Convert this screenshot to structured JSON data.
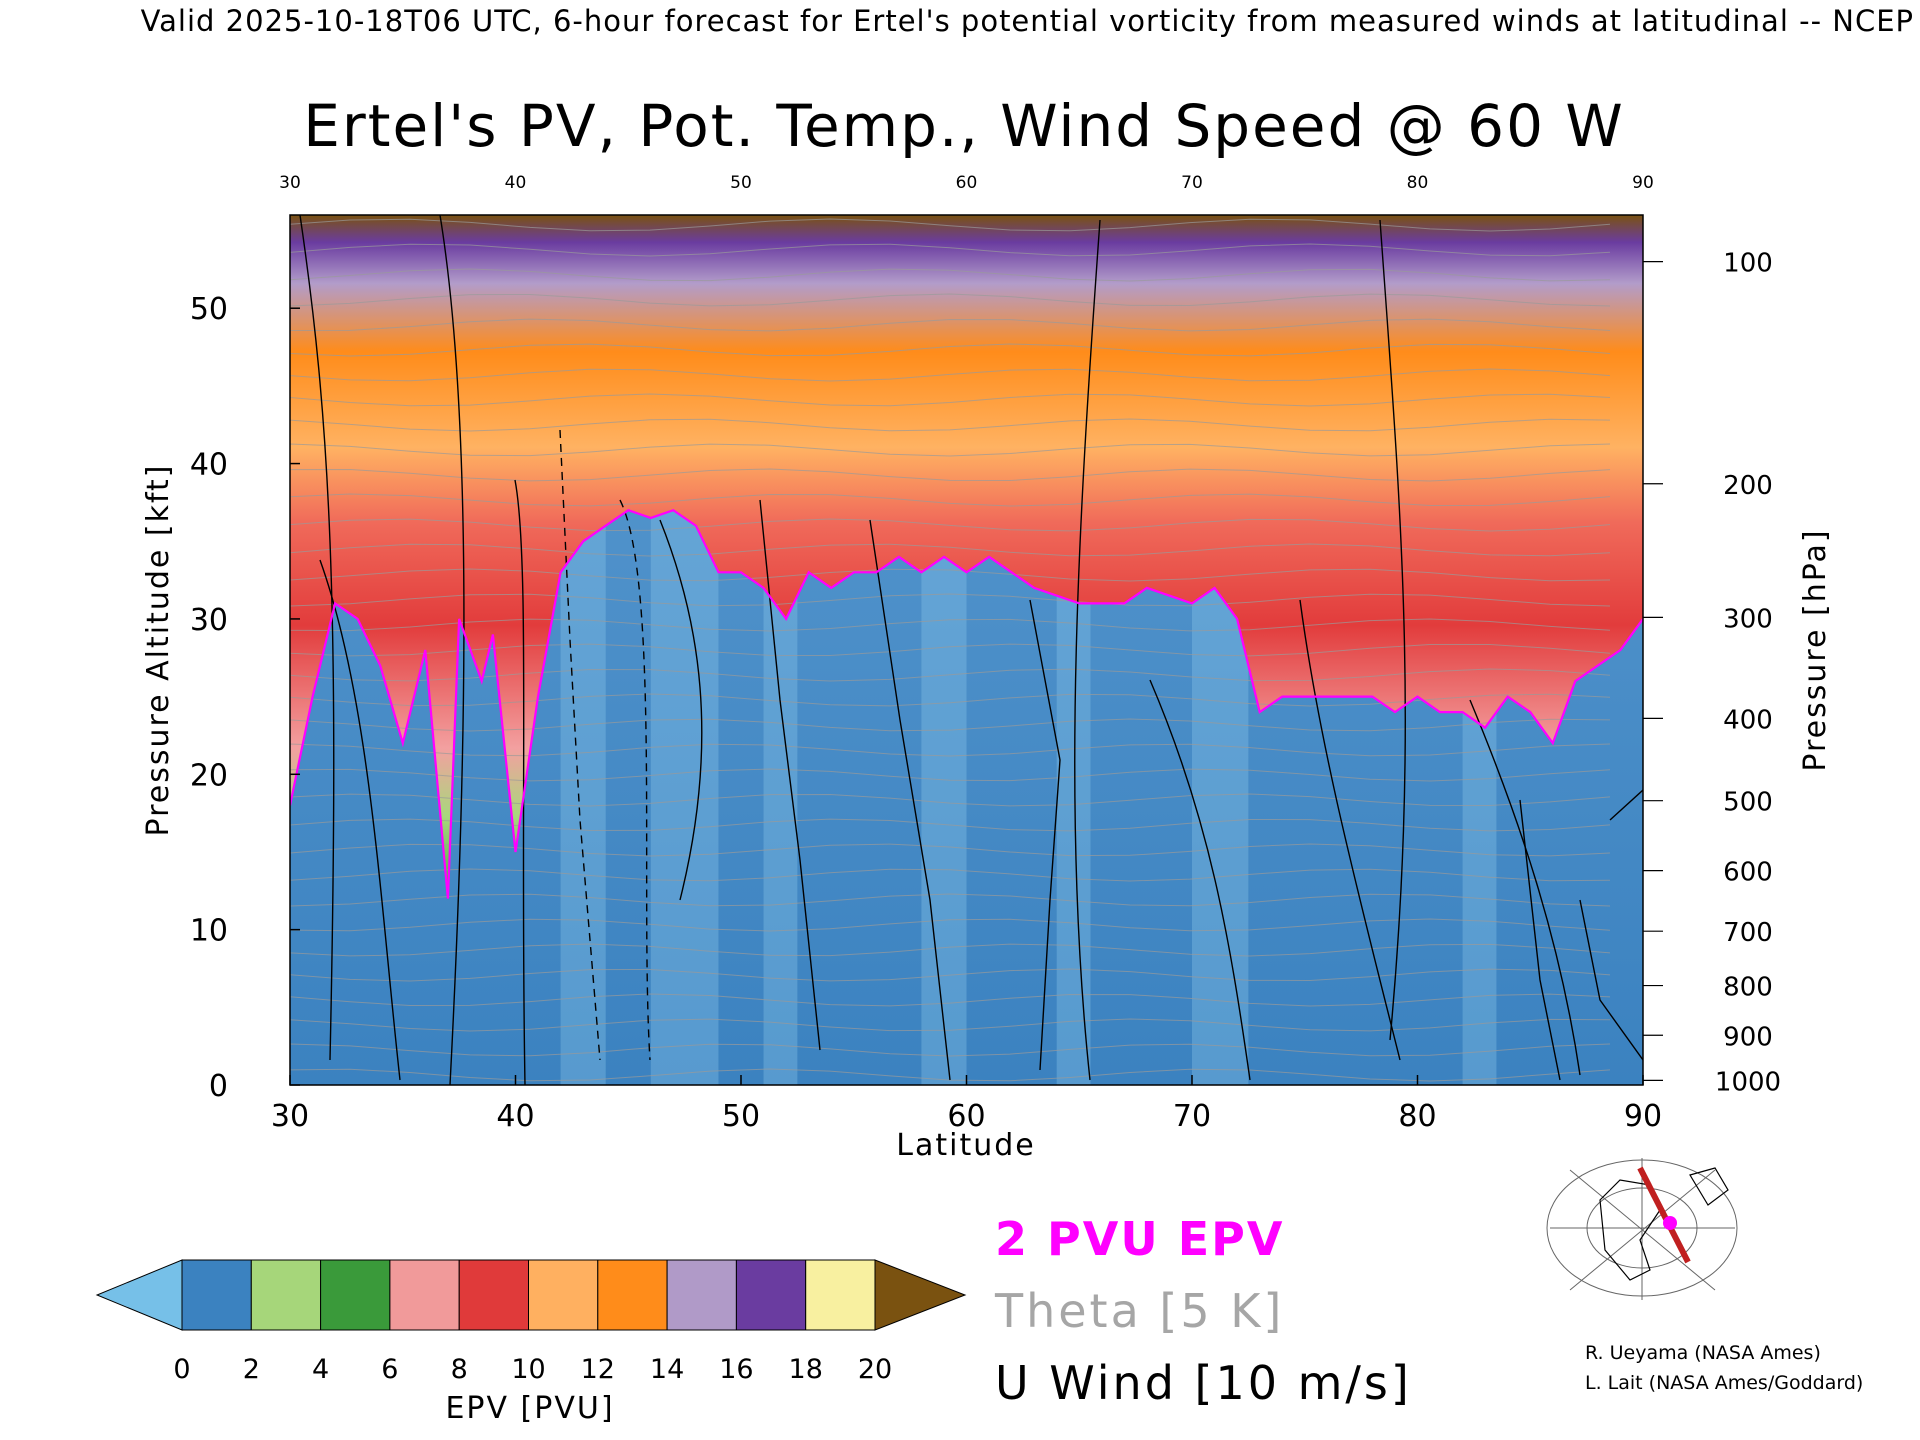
{
  "header": "Valid 2025-10-18T06 UTC, 6-hour forecast for Ertel's potential vorticity from measured winds at latitudinal -- NCEP",
  "title": "Ertel's PV, Pot. Temp., Wind Speed @ 60 W",
  "chart_data": {
    "type": "heatmap",
    "title": "Ertel's PV, Pot. Temp., Wind Speed @ 60 W",
    "xlabel": "Latitude",
    "ylabel": "Pressure Altitude [kft]",
    "y2label": "Pressure [hPa]",
    "xlim": [
      30,
      90
    ],
    "ylim": [
      0,
      56
    ],
    "x_ticks": [
      30,
      40,
      50,
      60,
      70,
      80,
      90
    ],
    "y_ticks": [
      0,
      10,
      20,
      30,
      40,
      50
    ],
    "pressure_ticks": [
      {
        "hpa": 100,
        "kft": 53.0
      },
      {
        "hpa": 200,
        "kft": 38.7
      },
      {
        "hpa": 300,
        "kft": 30.1
      },
      {
        "hpa": 400,
        "kft": 23.6
      },
      {
        "hpa": 500,
        "kft": 18.3
      },
      {
        "hpa": 600,
        "kft": 13.8
      },
      {
        "hpa": 700,
        "kft": 9.9
      },
      {
        "hpa": 800,
        "kft": 6.4
      },
      {
        "hpa": 900,
        "kft": 3.2
      },
      {
        "hpa": 1000,
        "kft": 0.3
      }
    ],
    "tropopause_kft": [
      [
        30,
        18
      ],
      [
        31,
        25
      ],
      [
        32,
        31
      ],
      [
        33,
        30
      ],
      [
        34,
        27
      ],
      [
        35,
        22
      ],
      [
        36,
        28
      ],
      [
        37,
        12
      ],
      [
        37.5,
        30
      ],
      [
        38.5,
        26
      ],
      [
        39,
        29
      ],
      [
        40,
        15
      ],
      [
        41,
        25
      ],
      [
        42,
        33
      ],
      [
        43,
        35
      ],
      [
        44,
        36
      ],
      [
        45,
        37
      ],
      [
        46,
        36.5
      ],
      [
        47,
        37
      ],
      [
        48,
        36
      ],
      [
        49,
        33
      ],
      [
        50,
        33
      ],
      [
        51,
        32
      ],
      [
        52,
        30
      ],
      [
        53,
        33
      ],
      [
        54,
        32
      ],
      [
        55,
        33
      ],
      [
        56,
        33
      ],
      [
        57,
        34
      ],
      [
        58,
        33
      ],
      [
        59,
        34
      ],
      [
        60,
        33
      ],
      [
        61,
        34
      ],
      [
        62,
        33
      ],
      [
        63,
        32
      ],
      [
        65,
        31
      ],
      [
        67,
        31
      ],
      [
        68,
        32
      ],
      [
        70,
        31
      ],
      [
        71,
        32
      ],
      [
        72,
        30
      ],
      [
        73,
        24
      ],
      [
        74,
        25
      ],
      [
        76,
        25
      ],
      [
        78,
        25
      ],
      [
        79,
        24
      ],
      [
        80,
        25
      ],
      [
        81,
        24
      ],
      [
        82,
        24
      ],
      [
        83,
        23
      ],
      [
        84,
        25
      ],
      [
        85,
        24
      ],
      [
        86,
        22
      ],
      [
        87,
        26
      ],
      [
        88,
        27
      ],
      [
        89,
        28
      ],
      [
        90,
        30
      ]
    ],
    "epv_colorbar": {
      "label": "EPV [PVU]",
      "ticks": [
        0,
        2,
        4,
        6,
        8,
        10,
        12,
        14,
        16,
        18,
        20
      ],
      "colors": [
        "#76c0e8",
        "#3b82c0",
        "#a6d67a",
        "#3a9a3a",
        "#f19a9a",
        "#e03a3a",
        "#ffb060",
        "#ff8c1a",
        "#b09ac8",
        "#6a3ca0",
        "#f8f0a0",
        "#7a5210"
      ]
    }
  },
  "legend": {
    "pvu_label": "2 PVU EPV",
    "theta_label": "Theta [5 K]",
    "wind_label": "U Wind [10 m/s]",
    "pvu_color": "#ff00ff",
    "theta_color": "#a6a6a6"
  },
  "credits": [
    "R. Ueyama (NASA Ames)",
    "L. Lait (NASA Ames/Goddard)"
  ]
}
